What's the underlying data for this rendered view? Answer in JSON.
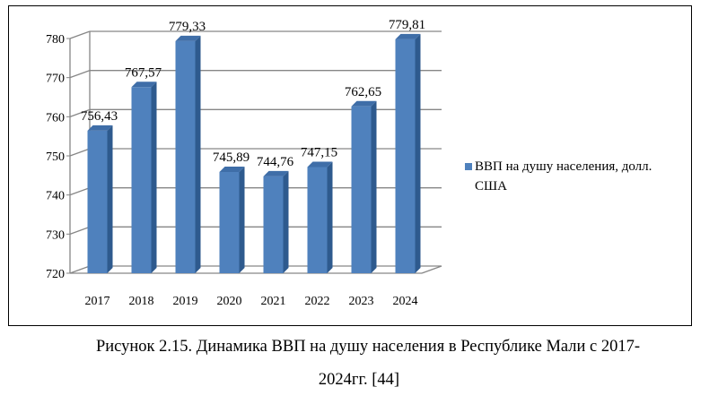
{
  "chart_data": {
    "type": "bar",
    "categories": [
      "2017",
      "2018",
      "2019",
      "2020",
      "2021",
      "2022",
      "2023",
      "2024"
    ],
    "series": [
      {
        "name": "ВВП на душу населения,  долл. США",
        "values": [
          756.43,
          767.57,
          779.33,
          745.89,
          744.76,
          747.15,
          762.65,
          779.81
        ],
        "labels": [
          "756,43",
          "767,57",
          "779,33",
          "745,89",
          "744,76",
          "747,15",
          "762,65",
          "779,81"
        ],
        "color": "#4F81BD"
      }
    ],
    "ylim": [
      720,
      780
    ],
    "yticks": [
      720,
      730,
      740,
      750,
      760,
      770,
      780
    ],
    "grid": true,
    "legend": "right",
    "style": "3d"
  },
  "legend": {
    "line1": "ВВП на душу населения,  долл.",
    "line2": "США"
  },
  "caption": {
    "line1": "Рисунок  2.15. Динамика ВВП на душу населения в  Республике Мали с 2017-",
    "line2": "2024гг. [44]"
  }
}
